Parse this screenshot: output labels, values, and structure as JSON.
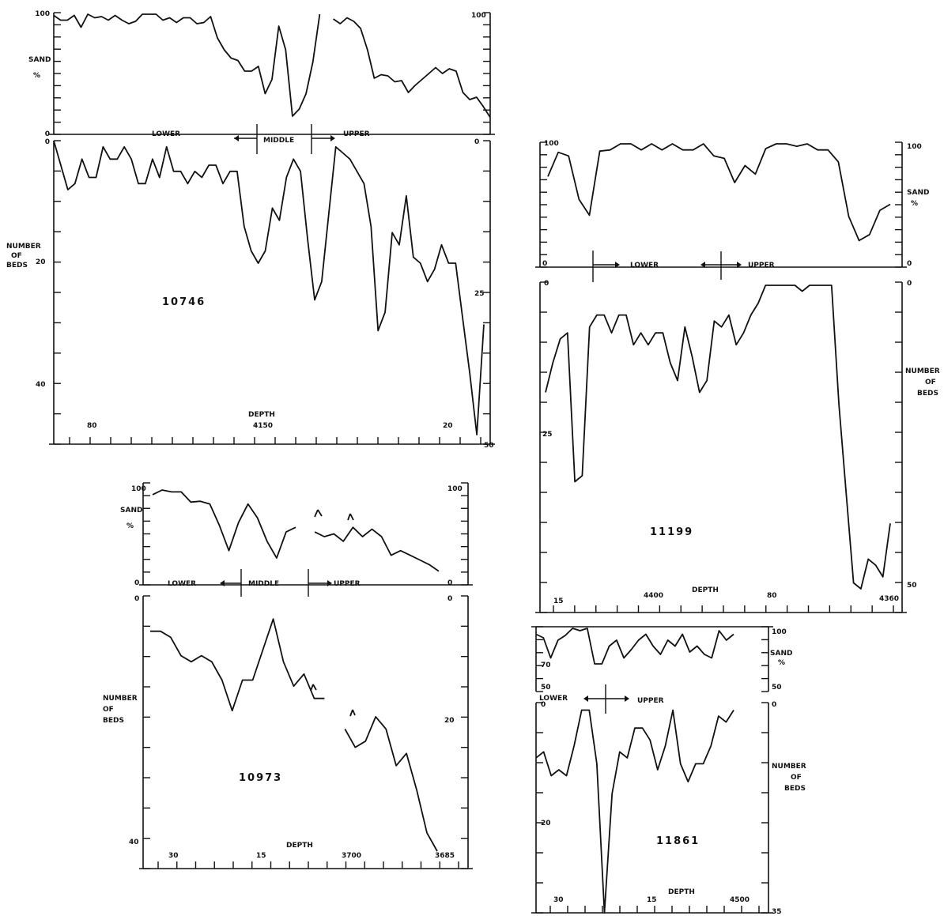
{
  "chart_data": [
    {
      "type": "line",
      "well": "10746",
      "sand": {
        "ylabel": [
          "SAND",
          "%"
        ],
        "ticks_left": [
          "100",
          "0"
        ],
        "ticks_right": [
          "100"
        ],
        "values": [
          99,
          95,
          95,
          99,
          89,
          100,
          97,
          98,
          95,
          99,
          95,
          92,
          94,
          100,
          100,
          100,
          95,
          97,
          93,
          97,
          97,
          92,
          93,
          98,
          80,
          70,
          63,
          61,
          52,
          52,
          56,
          33,
          45,
          90,
          70,
          14,
          20,
          33,
          60,
          100,
          null,
          96,
          92,
          97,
          94,
          88,
          70,
          46,
          49,
          48,
          43,
          44,
          34,
          40,
          45,
          50,
          55,
          50,
          54,
          52,
          34,
          28,
          30,
          22,
          13
        ]
      },
      "zones": [
        "LOWER",
        "MIDDLE",
        "UPPER"
      ],
      "beds": {
        "ylabel": [
          "NUMBER",
          "OF",
          "BEDS"
        ],
        "ticks_left": [
          "0",
          "20",
          "40"
        ],
        "ticks_right": [
          "0",
          "25",
          "50"
        ],
        "values": [
          0,
          4,
          8,
          7,
          3,
          6,
          6,
          1,
          3,
          3,
          1,
          3,
          7,
          7,
          3,
          6,
          1,
          5,
          5,
          7,
          5,
          6,
          4,
          4,
          7,
          5,
          5,
          14,
          18,
          20,
          18,
          11,
          13,
          6,
          3,
          5,
          16,
          26,
          23,
          12,
          1,
          2,
          3,
          5,
          7,
          14,
          31,
          28,
          15,
          17,
          9,
          19,
          20,
          23,
          21,
          17,
          20,
          20,
          29,
          38,
          48,
          30
        ]
      },
      "xlabel": "DEPTH",
      "x_ticks": [
        "80",
        "4150",
        "20"
      ]
    },
    {
      "type": "line",
      "well": "11199",
      "sand": {
        "ylabel": [
          "SAND",
          "%"
        ],
        "ticks_left": [
          "100",
          "0"
        ],
        "ticks_right": [
          "100",
          "0"
        ],
        "values": [
          73,
          93,
          90,
          54,
          41,
          94,
          95,
          100,
          100,
          95,
          100,
          95,
          100,
          95,
          95,
          100,
          90,
          88,
          68,
          82,
          75,
          96,
          100,
          100,
          98,
          100,
          95,
          95,
          85,
          40,
          20,
          25,
          45,
          50
        ]
      },
      "zones": [
        "LOWER",
        "UPPER"
      ],
      "beds": {
        "ylabel": [
          "NUMBER",
          "OF",
          "BEDS"
        ],
        "ticks_left": [
          "0",
          "25"
        ],
        "ticks_right": [
          "0",
          "50"
        ],
        "values": [
          18,
          13,
          9,
          8,
          33,
          32,
          7,
          5,
          5,
          8,
          5,
          5,
          10,
          8,
          10,
          8,
          8,
          13,
          16,
          7,
          12,
          18,
          16,
          6,
          7,
          5,
          10,
          8,
          5,
          3,
          0,
          0,
          0,
          0,
          0,
          1,
          0,
          0,
          0,
          0,
          20,
          35,
          50,
          51,
          46,
          47,
          49,
          40
        ]
      },
      "xlabel": "DEPTH",
      "x_ticks": [
        "15",
        "4400",
        "80",
        "4360"
      ]
    },
    {
      "type": "line",
      "well": "10973",
      "sand": {
        "ylabel": [
          "SAND",
          "%"
        ],
        "ticks_left": [
          "100",
          "0"
        ],
        "ticks_right": [
          "100",
          "0"
        ],
        "values": [
          95,
          100,
          98,
          98,
          87,
          88,
          85,
          62,
          35,
          65,
          85,
          70,
          45,
          27,
          55,
          60,
          null,
          55,
          50,
          53,
          45,
          60,
          50,
          58,
          50,
          30,
          35,
          30,
          25,
          20,
          13
        ]
      },
      "zones": [
        "LOWER",
        "MIDDLE",
        "UPPER"
      ],
      "beds": {
        "ylabel": [
          "NUMBER",
          "OF",
          "BEDS"
        ],
        "ticks_left": [
          "0",
          "40"
        ],
        "ticks_right": [
          "0",
          "20"
        ],
        "values": [
          5,
          5,
          6,
          9,
          10,
          9,
          10,
          13,
          18,
          13,
          13,
          8,
          3,
          10,
          14,
          12,
          16,
          16,
          null,
          21,
          24,
          23,
          19,
          21,
          27,
          25,
          31,
          38,
          41
        ]
      },
      "xlabel": "DEPTH",
      "x_ticks": [
        "30",
        "15",
        "3700",
        "3685"
      ]
    },
    {
      "type": "line",
      "well": "11861",
      "sand": {
        "ylabel": [
          "SAND",
          "%"
        ],
        "ticks_left": [
          "70",
          "50"
        ],
        "ticks_right": [
          "100",
          "50"
        ],
        "values": [
          95,
          92,
          75,
          90,
          94,
          100,
          98,
          100,
          70,
          70,
          85,
          90,
          75,
          82,
          90,
          95,
          85,
          78,
          90,
          85,
          95,
          80,
          85,
          78,
          75,
          98,
          90,
          95
        ]
      },
      "zones": [
        "LOWER",
        "UPPER"
      ],
      "beds": {
        "ylabel": [
          "NUMBER",
          "OF",
          "BEDS"
        ],
        "ticks_left": [
          "0",
          "20"
        ],
        "ticks_right": [
          "0",
          "35"
        ],
        "values": [
          9,
          8,
          12,
          11,
          12,
          7,
          1,
          1,
          10,
          35,
          15,
          8,
          9,
          4,
          4,
          6,
          11,
          7,
          1,
          10,
          13,
          10,
          10,
          7,
          2,
          3,
          1
        ]
      },
      "xlabel": "DEPTH",
      "x_ticks": [
        "30",
        "15",
        "4500"
      ]
    }
  ]
}
